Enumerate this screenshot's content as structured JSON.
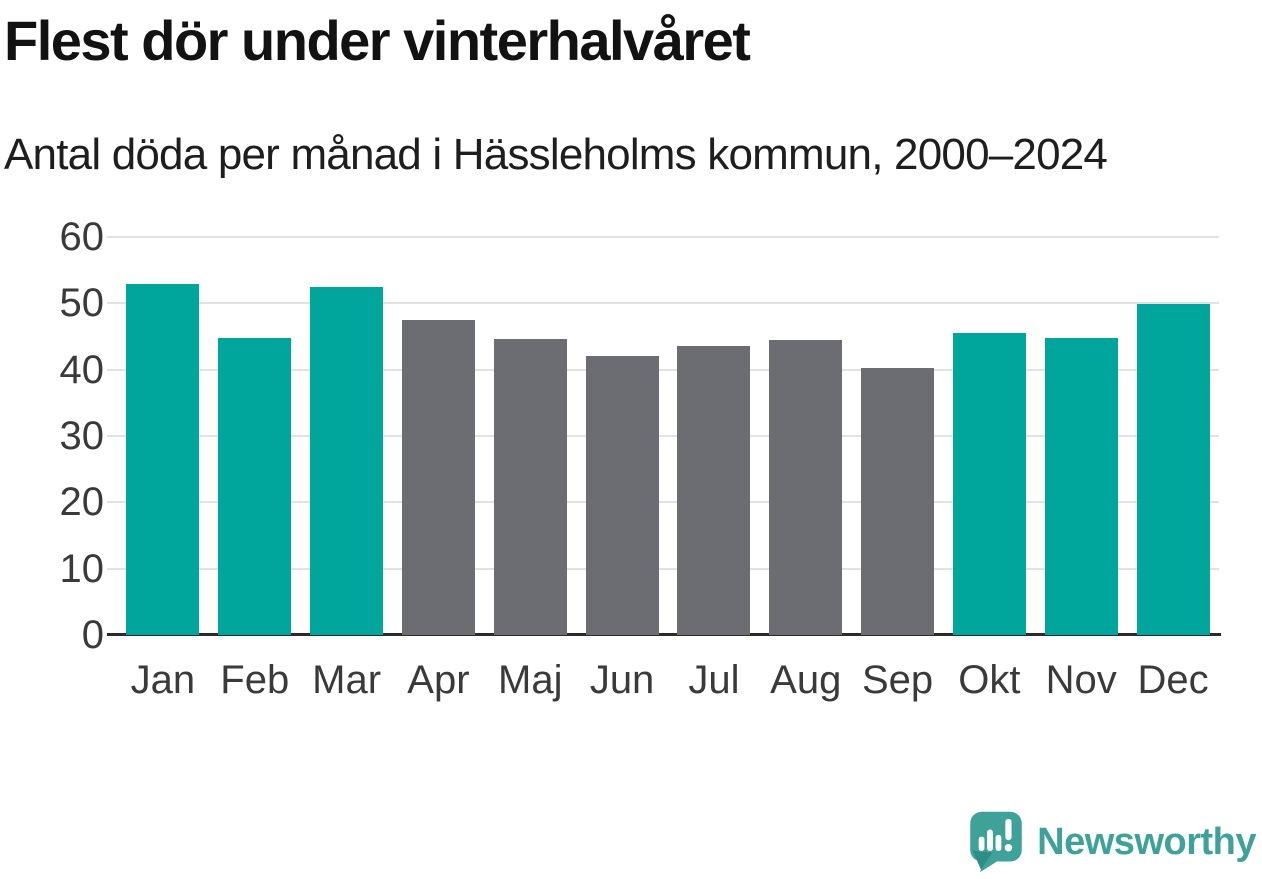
{
  "title": {
    "text": "Flest dör under vinterhalvåret"
  },
  "subtitle": {
    "text": "Antal döda per månad i Hässleholms kommun, 2000–2024"
  },
  "chart_data": {
    "type": "bar",
    "title": "Flest dör under vinterhalvåret",
    "subtitle": "Antal döda per månad i Hässleholms kommun, 2000–2024",
    "categories": [
      "Jan",
      "Feb",
      "Mar",
      "Apr",
      "Maj",
      "Jun",
      "Jul",
      "Aug",
      "Sep",
      "Okt",
      "Nov",
      "Dec"
    ],
    "values": [
      52.9,
      44.8,
      52.4,
      47.5,
      44.7,
      42.0,
      43.5,
      44.5,
      40.3,
      45.6,
      44.8,
      49.9
    ],
    "highlighted_categories": [
      "Jan",
      "Feb",
      "Mar",
      "Okt",
      "Nov",
      "Dec"
    ],
    "xlabel": "",
    "ylabel": "",
    "ylim": [
      0,
      60
    ],
    "yticks": [
      0,
      10,
      20,
      30,
      40,
      50,
      60
    ],
    "grid": true,
    "legend": "none"
  },
  "colors": {
    "highlight_bar": "#00A59B",
    "default_bar": "#6C6C73",
    "gridline": "#E2E2E2",
    "axis_line": "#2B2B2B",
    "axis_label": "#3A3A3A",
    "title_text": "#121212",
    "logo": "#3EA29B",
    "background": "#FFFFFF"
  },
  "branding": {
    "name": "Newsworthy"
  }
}
